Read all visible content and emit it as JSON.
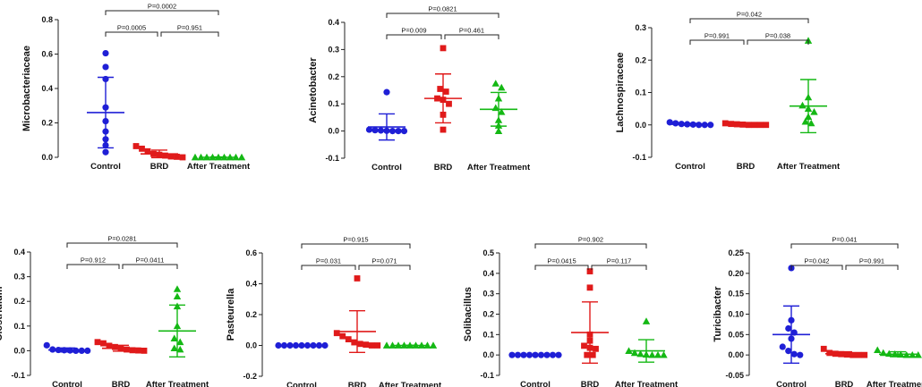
{
  "chart_data": [
    {
      "type": "scatter",
      "ylabel": "Microbacteriaceae",
      "ylim": [
        0,
        0.8
      ],
      "yticks": [
        0.0,
        0.2,
        0.4,
        0.6,
        0.8
      ],
      "tick_labels": [
        "0.0",
        "0.2",
        "0.4",
        "0.6",
        "0.8"
      ],
      "categories": [
        "Control",
        "BRD",
        "After Treatment"
      ],
      "series": [
        {
          "name": "Control",
          "color": "#1f1fd6",
          "marker": "circle",
          "values": [
            0.605,
            0.525,
            0.455,
            0.29,
            0.21,
            0.15,
            0.105,
            0.07,
            0.03
          ],
          "mean": 0.26,
          "sd": 0.205
        },
        {
          "name": "BRD",
          "color": "#e01a1a",
          "marker": "square",
          "values": [
            0.065,
            0.05,
            0.035,
            0.02,
            0.015,
            0.01,
            0.005,
            0.003,
            0.0
          ],
          "mean": 0.02,
          "sd": 0.022
        },
        {
          "name": "After Treatment",
          "color": "#14b814",
          "marker": "triangle",
          "values": [
            0.0,
            0.0,
            0.0,
            0.0,
            0.0,
            0.0,
            0.0,
            0.0,
            0.0
          ],
          "mean": 0.0,
          "sd": 0.002
        }
      ],
      "comparisons": [
        {
          "from": 0,
          "to": 1,
          "label": "P=0.0005"
        },
        {
          "from": 1,
          "to": 2,
          "label": "P=0.951"
        },
        {
          "from": 0,
          "to": 2,
          "label": "P=0.0002"
        }
      ]
    },
    {
      "type": "scatter",
      "ylabel": "Acinetobacter",
      "ylim": [
        -0.1,
        0.4
      ],
      "yticks": [
        -0.1,
        0.0,
        0.1,
        0.2,
        0.3,
        0.4
      ],
      "tick_labels": [
        "-0.1",
        "0.0",
        "0.1",
        "0.2",
        "0.3",
        "0.4"
      ],
      "categories": [
        "Control",
        "BRD",
        "After Treatment"
      ],
      "series": [
        {
          "name": "Control",
          "color": "#1f1fd6",
          "marker": "circle",
          "values": [
            0.143,
            0.005,
            0.003,
            0.002,
            0.001,
            0.0,
            0.0,
            0.0
          ],
          "mean": 0.015,
          "sd": 0.048
        },
        {
          "name": "BRD",
          "color": "#e01a1a",
          "marker": "square",
          "values": [
            0.305,
            0.155,
            0.145,
            0.12,
            0.115,
            0.1,
            0.06,
            0.005
          ],
          "mean": 0.12,
          "sd": 0.09
        },
        {
          "name": "After Treatment",
          "color": "#14b814",
          "marker": "triangle",
          "values": [
            0.175,
            0.16,
            0.12,
            0.085,
            0.07,
            0.04,
            0.02,
            0.0
          ],
          "mean": 0.08,
          "sd": 0.062
        }
      ],
      "comparisons": [
        {
          "from": 0,
          "to": 1,
          "label": "P=0.009"
        },
        {
          "from": 1,
          "to": 2,
          "label": "P=0.461"
        },
        {
          "from": 0,
          "to": 2,
          "label": "P=0.0821"
        }
      ]
    },
    {
      "type": "scatter",
      "ylabel": "Lachnospiraceae",
      "ylim": [
        -0.1,
        0.3
      ],
      "yticks": [
        -0.1,
        0.0,
        0.1,
        0.2,
        0.3
      ],
      "tick_labels": [
        "-0.1",
        "0.0",
        "0.1",
        "0.2",
        "0.3"
      ],
      "categories": [
        "Control",
        "BRD",
        "After Treatment"
      ],
      "series": [
        {
          "name": "Control",
          "color": "#1f1fd6",
          "marker": "circle",
          "values": [
            0.008,
            0.005,
            0.003,
            0.002,
            0.001,
            0.0,
            0.0,
            0.0
          ],
          "mean": 0.002,
          "sd": 0.003
        },
        {
          "name": "BRD",
          "color": "#e01a1a",
          "marker": "square",
          "values": [
            0.005,
            0.003,
            0.002,
            0.001,
            0.0,
            0.0,
            0.0,
            0.0
          ],
          "mean": 0.001,
          "sd": 0.002
        },
        {
          "name": "After Treatment",
          "color": "#14b814",
          "marker": "triangle",
          "values": [
            0.26,
            0.085,
            0.06,
            0.05,
            0.04,
            0.025,
            0.01,
            0.005
          ],
          "mean": 0.058,
          "sd": 0.082
        }
      ],
      "comparisons": [
        {
          "from": 0,
          "to": 1,
          "label": "P=0.991"
        },
        {
          "from": 1,
          "to": 2,
          "label": "P=0.038"
        },
        {
          "from": 0,
          "to": 2,
          "label": "P=0.042"
        }
      ]
    },
    {
      "type": "scatter",
      "ylabel": "Clostridium",
      "ylim": [
        -0.1,
        0.4
      ],
      "yticks": [
        -0.1,
        0.0,
        0.1,
        0.2,
        0.3,
        0.4
      ],
      "tick_labels": [
        "-0.1",
        "0.0",
        "0.1",
        "0.2",
        "0.3",
        "0.4"
      ],
      "categories": [
        "Control",
        "BRD",
        "After Treatment"
      ],
      "series": [
        {
          "name": "Control",
          "color": "#1f1fd6",
          "marker": "circle",
          "values": [
            0.022,
            0.005,
            0.003,
            0.002,
            0.001,
            0.0,
            0.0,
            0.0
          ],
          "mean": 0.003,
          "sd": 0.008
        },
        {
          "name": "BRD",
          "color": "#e01a1a",
          "marker": "square",
          "values": [
            0.035,
            0.03,
            0.02,
            0.015,
            0.01,
            0.005,
            0.002,
            0.001,
            0.0
          ],
          "mean": 0.01,
          "sd": 0.012
        },
        {
          "name": "After Treatment",
          "color": "#14b814",
          "marker": "triangle",
          "values": [
            0.25,
            0.22,
            0.18,
            0.1,
            0.05,
            0.035,
            0.01,
            0.005
          ],
          "mean": 0.08,
          "sd": 0.105
        }
      ],
      "comparisons": [
        {
          "from": 0,
          "to": 1,
          "label": "P=0.912"
        },
        {
          "from": 1,
          "to": 2,
          "label": "P=0.0411"
        },
        {
          "from": 0,
          "to": 2,
          "label": "P=0.0281"
        }
      ]
    },
    {
      "type": "scatter",
      "ylabel": "Pasteurella",
      "ylim": [
        -0.2,
        0.6
      ],
      "yticks": [
        -0.2,
        0.0,
        0.2,
        0.4,
        0.6
      ],
      "tick_labels": [
        "-0.2",
        "0.0",
        "0.2",
        "0.4",
        "0.6"
      ],
      "categories": [
        "Control",
        "BRD",
        "After Treatment"
      ],
      "series": [
        {
          "name": "Control",
          "color": "#1f1fd6",
          "marker": "circle",
          "values": [
            0.0,
            0.0,
            0.0,
            0.0,
            0.0,
            0.0,
            0.0,
            0.0,
            0.0
          ],
          "mean": 0.0,
          "sd": 0.002
        },
        {
          "name": "BRD",
          "color": "#e01a1a",
          "marker": "square",
          "values": [
            0.435,
            0.08,
            0.06,
            0.04,
            0.02,
            0.01,
            0.005,
            0.0,
            0.0
          ],
          "mean": 0.09,
          "sd": 0.135
        },
        {
          "name": "After Treatment",
          "color": "#14b814",
          "marker": "triangle",
          "values": [
            0.0,
            0.0,
            0.0,
            0.0,
            0.0,
            0.0,
            0.0,
            0.0,
            0.0
          ],
          "mean": 0.0,
          "sd": 0.002
        }
      ],
      "comparisons": [
        {
          "from": 0,
          "to": 1,
          "label": "P=0.031"
        },
        {
          "from": 1,
          "to": 2,
          "label": "P=0.071"
        },
        {
          "from": 0,
          "to": 2,
          "label": "P=0.915"
        }
      ]
    },
    {
      "type": "scatter",
      "ylabel": "Solibacillus",
      "ylim": [
        -0.1,
        0.5
      ],
      "yticks": [
        -0.1,
        0.0,
        0.1,
        0.2,
        0.3,
        0.4,
        0.5
      ],
      "tick_labels": [
        "-0.1",
        "0.0",
        "0.1",
        "0.2",
        "0.3",
        "0.4",
        "0.5"
      ],
      "categories": [
        "Control",
        "BRD",
        "After Treatment"
      ],
      "series": [
        {
          "name": "Control",
          "color": "#1f1fd6",
          "marker": "circle",
          "values": [
            0.0,
            0.0,
            0.0,
            0.0,
            0.0,
            0.0,
            0.0,
            0.0,
            0.0
          ],
          "mean": 0.0,
          "sd": 0.002
        },
        {
          "name": "BRD",
          "color": "#e01a1a",
          "marker": "square",
          "values": [
            0.41,
            0.33,
            0.1,
            0.07,
            0.045,
            0.035,
            0.03,
            0.0,
            0.0
          ],
          "mean": 0.11,
          "sd": 0.15
        },
        {
          "name": "After Treatment",
          "color": "#14b814",
          "marker": "triangle",
          "values": [
            0.165,
            0.02,
            0.01,
            0.005,
            0.002,
            0.0,
            0.0,
            0.0
          ],
          "mean": 0.02,
          "sd": 0.055
        }
      ],
      "comparisons": [
        {
          "from": 0,
          "to": 1,
          "label": "P=0.0415"
        },
        {
          "from": 1,
          "to": 2,
          "label": "P=0.117"
        },
        {
          "from": 0,
          "to": 2,
          "label": "P=0.902"
        }
      ]
    },
    {
      "type": "scatter",
      "ylabel": "Turicibacter",
      "ylim": [
        -0.05,
        0.25
      ],
      "yticks": [
        -0.05,
        0.0,
        0.05,
        0.1,
        0.15,
        0.2,
        0.25
      ],
      "tick_labels": [
        "-0.05",
        "0.00",
        "0.05",
        "0.10",
        "0.15",
        "0.20",
        "0.25"
      ],
      "categories": [
        "Control",
        "BRD",
        "After Treatment"
      ],
      "series": [
        {
          "name": "Control",
          "color": "#1f1fd6",
          "marker": "circle",
          "values": [
            0.213,
            0.085,
            0.065,
            0.055,
            0.04,
            0.02,
            0.01,
            0.002,
            0.0
          ],
          "mean": 0.05,
          "sd": 0.07
        },
        {
          "name": "BRD",
          "color": "#e01a1a",
          "marker": "square",
          "values": [
            0.015,
            0.005,
            0.003,
            0.002,
            0.001,
            0.0,
            0.0,
            0.0
          ],
          "mean": 0.003,
          "sd": 0.005
        },
        {
          "name": "After Treatment",
          "color": "#14b814",
          "marker": "triangle",
          "values": [
            0.012,
            0.005,
            0.003,
            0.002,
            0.001,
            0.0,
            0.0,
            0.0
          ],
          "mean": 0.002,
          "sd": 0.006
        }
      ],
      "comparisons": [
        {
          "from": 0,
          "to": 1,
          "label": "P=0.042"
        },
        {
          "from": 1,
          "to": 2,
          "label": "P=0.991"
        },
        {
          "from": 0,
          "to": 2,
          "label": "P=0.041"
        }
      ]
    }
  ]
}
